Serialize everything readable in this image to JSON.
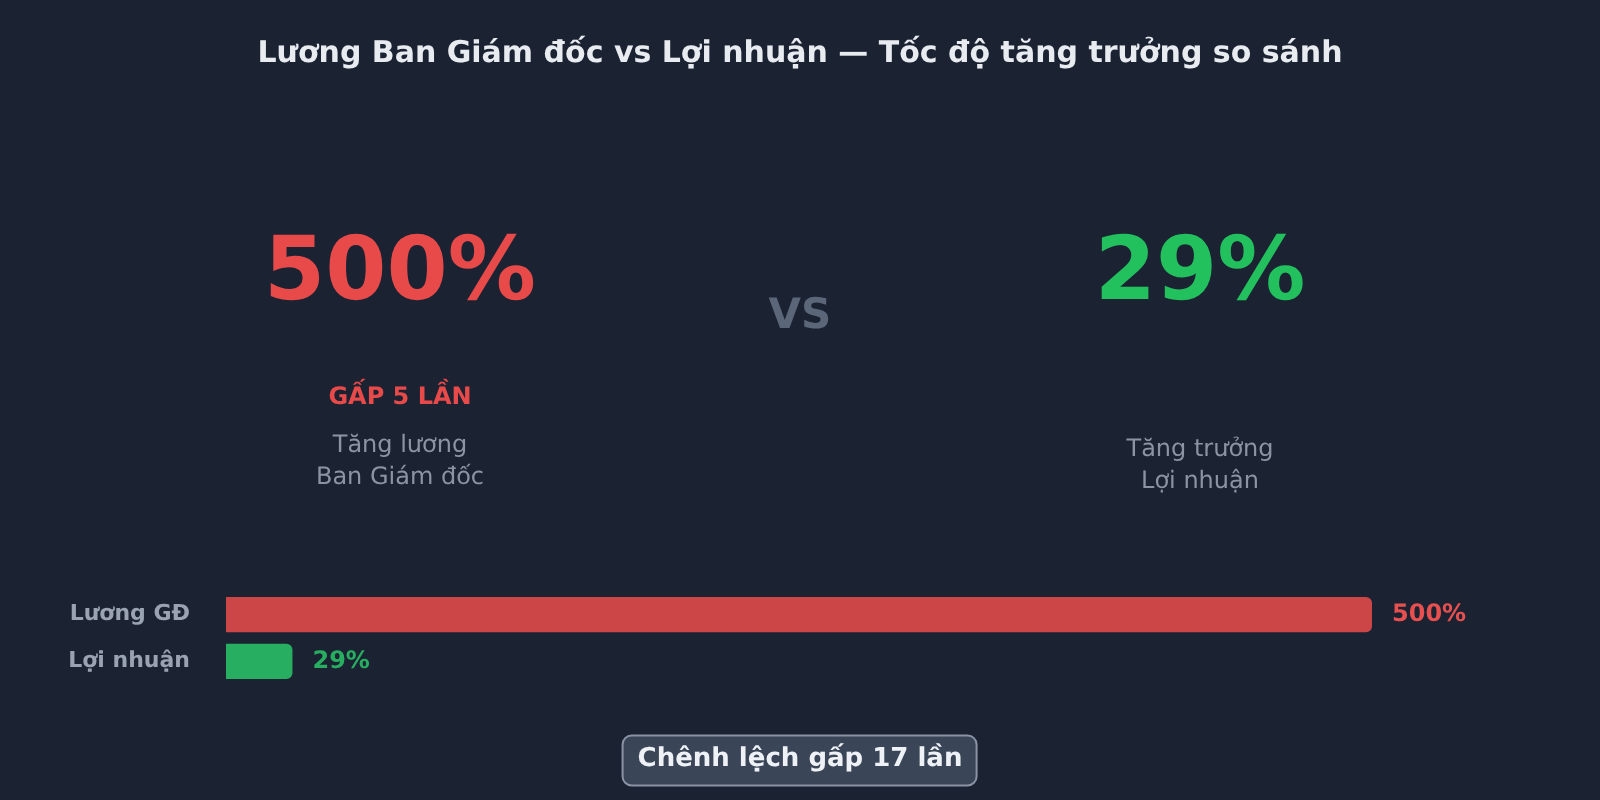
{
  "chart_data": {
    "type": "bar",
    "orientation": "horizontal",
    "title": "Lương Ban Giám đốc vs Lợi nhuận — Tốc độ tăng trưởng so sánh",
    "categories": [
      "Lương GĐ",
      "Lợi nhuận"
    ],
    "values": [
      500,
      29
    ],
    "colors": [
      "#cc4648",
      "#27ae60"
    ],
    "value_labels": [
      "500%",
      "29%"
    ],
    "xlim": [
      0,
      500
    ],
    "tick_labels": "y",
    "legend": false,
    "annotations": [
      "500%",
      "VS",
      "29%",
      "GẤP 5 LẦN",
      "Tăng lương\nBan Giám đốc",
      "Tăng trưởng\nLợi nhuận",
      "Chênh lệch gấp 17 lần"
    ]
  }
}
